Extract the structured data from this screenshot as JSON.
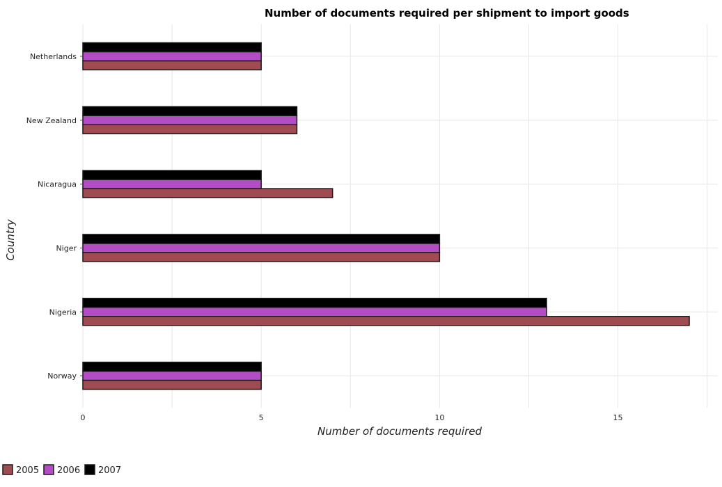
{
  "chart_data": {
    "type": "bar",
    "orientation": "horizontal",
    "title": "Number of documents required per shipment to import goods",
    "xlabel": "Number of documents required",
    "ylabel": "Country",
    "categories": [
      "Netherlands",
      "New Zealand",
      "Nicaragua",
      "Niger",
      "Nigeria",
      "Norway"
    ],
    "series": [
      {
        "name": "2005",
        "color": "#9e4c51",
        "values": [
          5,
          6,
          7,
          10,
          17,
          5
        ]
      },
      {
        "name": "2006",
        "color": "#b44dc5",
        "values": [
          5,
          6,
          5,
          10,
          13,
          5
        ]
      },
      {
        "name": "2007",
        "color": "#000000",
        "values": [
          5,
          6,
          5,
          10,
          13,
          5
        ]
      }
    ],
    "xlim": [
      0,
      17.8
    ],
    "xticks": [
      0,
      5,
      10,
      15
    ],
    "grid": true,
    "legend_position": "bottom-left"
  }
}
